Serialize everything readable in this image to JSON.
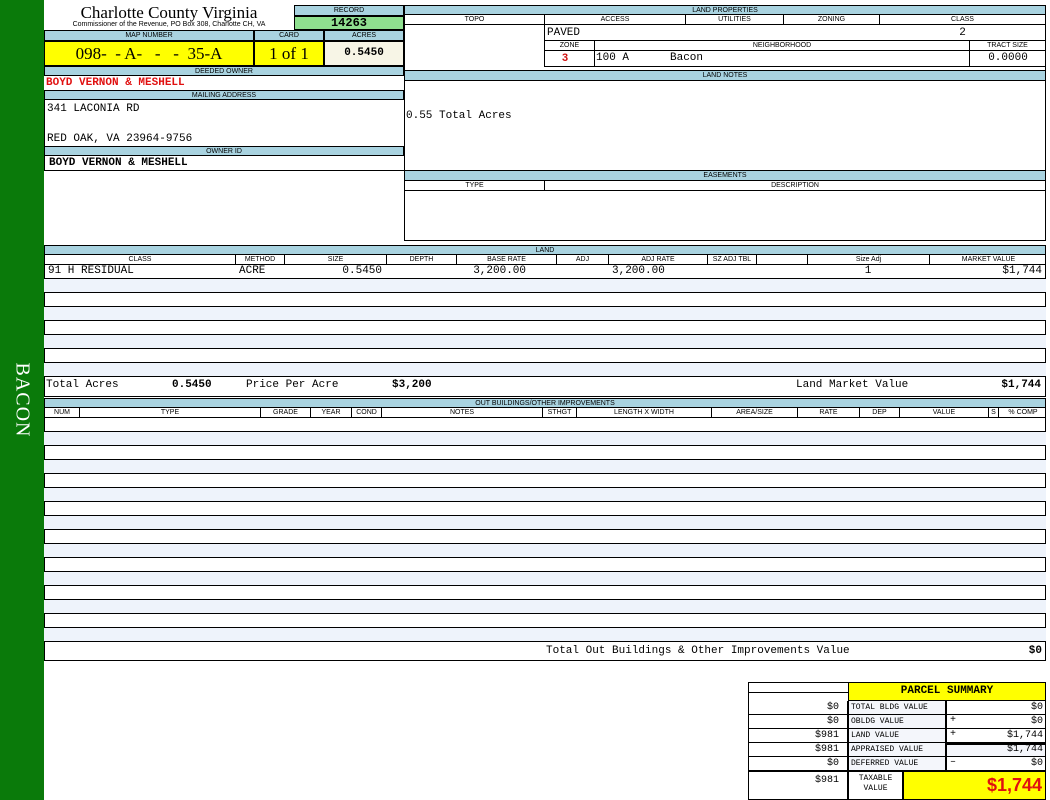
{
  "sidebar_label": "BACON",
  "header": {
    "county": "Charlotte County Virginia",
    "subtitle": "Commissioner of the Revenue, PO Box 308, Charlotte CH, VA",
    "record_label": "RECORD",
    "record": "14263"
  },
  "parcel": {
    "map_label": "MAP NUMBER",
    "map_number": "098-  - A-   -   -  35-A",
    "card_label": "CARD",
    "card": "1 of 1",
    "acres_label": "ACRES",
    "acres": "0.5450"
  },
  "owner": {
    "deeded_label": "DEEDED OWNER",
    "deeded": "BOYD VERNON & MESHELL",
    "mailing_label": "MAILING ADDRESS",
    "address1": "341 LACONIA RD",
    "address2": "RED OAK, VA 23964-9756",
    "owner_id_label": "OWNER ID",
    "owner_id": "BOYD VERNON & MESHELL"
  },
  "land_properties": {
    "title": "LAND PROPERTIES",
    "topo_label": "TOPO",
    "access_label": "ACCESS",
    "utilities_label": "UTILITIES",
    "zoning_label": "ZONING",
    "class_label": "CLASS",
    "access": "PAVED",
    "class": "2",
    "zone_label": "ZONE",
    "neighborhood_label": "NEIGHBORHOOD",
    "tract_label": "TRACT SIZE",
    "zone": "3",
    "neighborhood_code": "100 A",
    "neighborhood": "Bacon",
    "tract_size": "0.0000"
  },
  "land_notes": {
    "title": "LAND NOTES",
    "text": "0.55 Total Acres"
  },
  "easements": {
    "title": "EASEMENTS",
    "type_label": "TYPE",
    "description_label": "DESCRIPTION"
  },
  "land": {
    "title": "LAND",
    "columns": [
      "CLASS",
      "METHOD",
      "SIZE",
      "DEPTH",
      "BASE RATE",
      "ADJ",
      "ADJ RATE",
      "SZ ADJ TBL",
      "",
      "Size Adj",
      "MARKET VALUE"
    ],
    "rows": [
      [
        "91  H RESIDUAL",
        "ACRE",
        "0.5450",
        "",
        "3,200.00",
        "",
        "3,200.00",
        "",
        "",
        "1",
        "$1,744"
      ]
    ],
    "total_acres_label": "Total Acres",
    "total_acres": "0.5450",
    "price_label": "Price Per Acre",
    "price": "$3,200",
    "market_label": "Land Market Value",
    "market": "$1,744"
  },
  "outbuildings": {
    "title": "OUT BUILDINGS/OTHER IMPROVEMENTS",
    "columns": [
      "NUM",
      "TYPE",
      "GRADE",
      "YEAR",
      "COND",
      "NOTES",
      "STHGT",
      "LENGTH X WIDTH",
      "AREA/SIZE",
      "RATE",
      "DEP",
      "VALUE",
      "S",
      "% COMP"
    ],
    "total_label": "Total Out Buildings & Other Improvements Value",
    "total": "$0"
  },
  "summary": {
    "title": "PARCEL SUMMARY",
    "rows": [
      {
        "prior": "$0",
        "label": "TOTAL BLDG VALUE",
        "op": "",
        "value": "$0"
      },
      {
        "prior": "$0",
        "label": "OBLDG VALUE",
        "op": "+",
        "value": "$0"
      },
      {
        "prior": "$981",
        "label": "LAND VALUE",
        "op": "+",
        "value": "$1,744"
      },
      {
        "prior": "$981",
        "label": "APPRAISED VALUE",
        "op": "",
        "value": "$1,744"
      },
      {
        "prior": "$0",
        "label": "DEFERRED VALUE",
        "op": "–",
        "value": "$0"
      }
    ],
    "taxable_prior": "$981",
    "taxable_label": "TAXABLE VALUE",
    "taxable": "$1,744"
  },
  "colors": {
    "sidebar": "#0a7a0a",
    "header_band": "#a9d3e0",
    "highlight": "#ffff00",
    "record": "#8fe08f",
    "owner_red": "#e01010"
  }
}
